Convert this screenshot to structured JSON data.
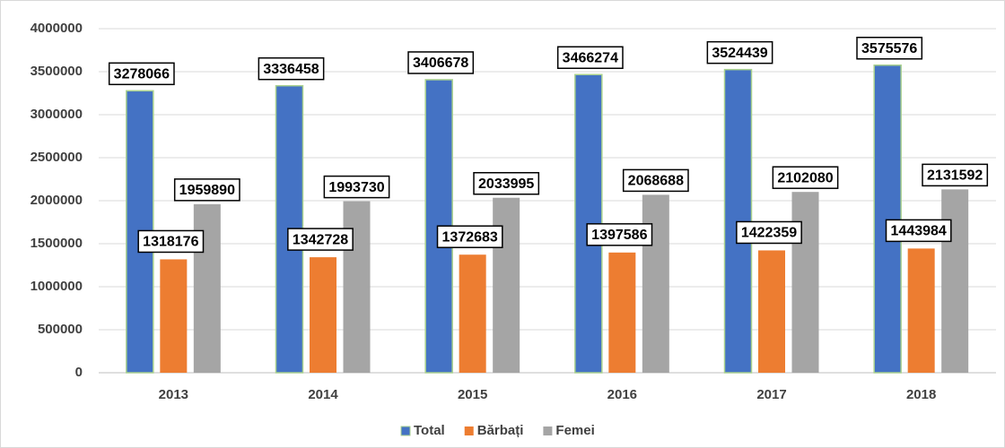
{
  "chart_data": {
    "type": "bar",
    "categories": [
      "2013",
      "2014",
      "2015",
      "2016",
      "2017",
      "2018"
    ],
    "series": [
      {
        "name": "Total",
        "color": "#4472c4",
        "values": [
          3278066,
          3336458,
          3406678,
          3466274,
          3524439,
          3575576
        ]
      },
      {
        "name": "Bărbați",
        "color": "#ed7d31",
        "values": [
          1318176,
          1342728,
          1372683,
          1397586,
          1422359,
          1443984
        ]
      },
      {
        "name": "Femei",
        "color": "#a5a5a5",
        "values": [
          1959890,
          1993730,
          2033995,
          2068688,
          2102080,
          2131592
        ]
      }
    ],
    "ylim": [
      0,
      4000000
    ],
    "yticks": [
      0,
      500000,
      1000000,
      1500000,
      2000000,
      2500000,
      3000000,
      3500000,
      4000000
    ],
    "grid": true,
    "legend": "bottom"
  }
}
